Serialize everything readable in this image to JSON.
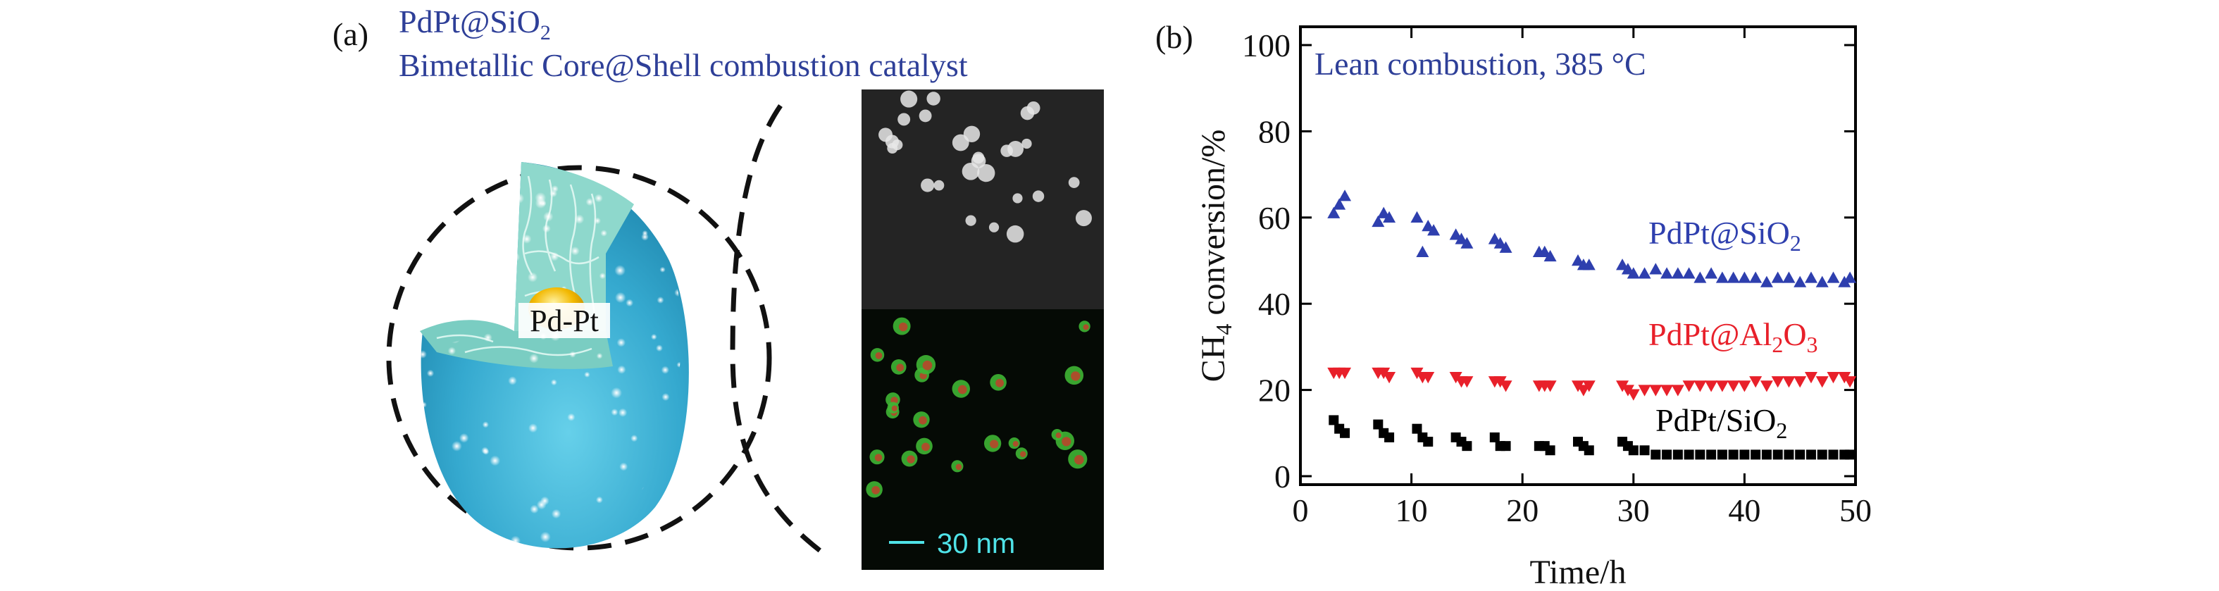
{
  "panel_a": {
    "label": "(a)",
    "title_line1_main": "PdPt@SiO",
    "title_line1_sub": "2",
    "title_line2": "Bimetallic Core@Shell combustion catalyst",
    "core_label": "Pd-Pt",
    "scale_bar_label": "30 nm"
  },
  "panel_b": {
    "label": "(b)"
  },
  "colors": {
    "silica_shell": "#3fb2d6",
    "shell_cut": "#8ed8cc",
    "core": "#e0a800",
    "series_blue": "#2e3fae",
    "series_red": "#e8202a",
    "series_black": "#000000",
    "annotation_blue": "#2e3f98"
  },
  "chart_data": {
    "type": "scatter",
    "annotation": "Lean combustion, 385 °C",
    "xlabel": "Time/h",
    "ylabel_main": "CH",
    "ylabel_sub": "4",
    "ylabel_rest": " conversion/%",
    "xlim": [
      0,
      50
    ],
    "ylim": [
      0,
      100
    ],
    "xticks": [
      0,
      10,
      20,
      30,
      40,
      50
    ],
    "yticks": [
      0,
      20,
      40,
      60,
      80,
      100
    ],
    "series": [
      {
        "label_main": "PdPt@SiO",
        "label_sub": "2",
        "label_tail": "",
        "marker": "triangle-up",
        "points": [
          [
            3,
            61
          ],
          [
            3.5,
            63
          ],
          [
            4,
            65
          ],
          [
            7,
            59
          ],
          [
            7.5,
            61
          ],
          [
            8,
            60
          ],
          [
            10.5,
            60
          ],
          [
            11,
            52
          ],
          [
            11.5,
            58
          ],
          [
            12,
            57
          ],
          [
            14,
            56
          ],
          [
            14.5,
            55
          ],
          [
            15,
            54
          ],
          [
            17.5,
            55
          ],
          [
            18,
            54
          ],
          [
            18.5,
            53
          ],
          [
            21.5,
            52
          ],
          [
            22,
            52
          ],
          [
            22.5,
            51
          ],
          [
            25,
            50
          ],
          [
            25.5,
            49
          ],
          [
            26,
            49
          ],
          [
            29,
            49
          ],
          [
            29.5,
            48
          ],
          [
            30,
            47
          ],
          [
            31,
            47
          ],
          [
            32,
            48
          ],
          [
            33,
            47
          ],
          [
            34,
            47
          ],
          [
            35,
            47
          ],
          [
            36,
            46
          ],
          [
            37,
            47
          ],
          [
            38,
            46
          ],
          [
            39,
            46
          ],
          [
            40,
            46
          ],
          [
            41,
            46
          ],
          [
            42,
            45
          ],
          [
            43,
            46
          ],
          [
            44,
            46
          ],
          [
            45,
            45
          ],
          [
            46,
            46
          ],
          [
            47,
            45
          ],
          [
            48,
            46
          ],
          [
            49,
            45
          ],
          [
            49.5,
            46
          ]
        ]
      },
      {
        "label_main": "PdPt@Al",
        "label_sub": "2",
        "label_tail": "O3",
        "marker": "triangle-down",
        "points": [
          [
            3,
            24
          ],
          [
            3.5,
            24
          ],
          [
            4,
            24
          ],
          [
            7,
            24
          ],
          [
            7.5,
            24
          ],
          [
            8,
            23
          ],
          [
            10.5,
            24
          ],
          [
            11,
            23
          ],
          [
            11.5,
            23
          ],
          [
            14,
            23
          ],
          [
            14.5,
            22
          ],
          [
            15,
            22
          ],
          [
            17.5,
            22
          ],
          [
            18,
            22
          ],
          [
            18.5,
            21
          ],
          [
            21.5,
            21
          ],
          [
            22,
            21
          ],
          [
            22.5,
            21
          ],
          [
            25,
            21
          ],
          [
            25.5,
            20
          ],
          [
            26,
            21
          ],
          [
            29,
            21
          ],
          [
            29.5,
            20
          ],
          [
            30,
            19
          ],
          [
            31,
            20
          ],
          [
            32,
            20
          ],
          [
            33,
            20
          ],
          [
            34,
            20
          ],
          [
            35,
            21
          ],
          [
            36,
            21
          ],
          [
            37,
            21
          ],
          [
            38,
            21
          ],
          [
            39,
            21
          ],
          [
            40,
            21
          ],
          [
            41,
            22
          ],
          [
            42,
            21
          ],
          [
            43,
            22
          ],
          [
            44,
            22
          ],
          [
            45,
            22
          ],
          [
            46,
            23
          ],
          [
            47,
            22
          ],
          [
            48,
            23
          ],
          [
            49,
            23
          ],
          [
            49.5,
            22
          ]
        ]
      },
      {
        "label_main": "PdPt/SiO",
        "label_sub": "2",
        "label_tail": "",
        "marker": "square",
        "points": [
          [
            3,
            13
          ],
          [
            3.5,
            11
          ],
          [
            4,
            10
          ],
          [
            7,
            12
          ],
          [
            7.5,
            10
          ],
          [
            8,
            9
          ],
          [
            10.5,
            11
          ],
          [
            11,
            9
          ],
          [
            11.5,
            8
          ],
          [
            14,
            9
          ],
          [
            14.5,
            8
          ],
          [
            15,
            7
          ],
          [
            17.5,
            9
          ],
          [
            18,
            7
          ],
          [
            18.5,
            7
          ],
          [
            21.5,
            7
          ],
          [
            22,
            7
          ],
          [
            22.5,
            6
          ],
          [
            25,
            8
          ],
          [
            25.5,
            7
          ],
          [
            26,
            6
          ],
          [
            29,
            8
          ],
          [
            29.5,
            7
          ],
          [
            30,
            6
          ],
          [
            31,
            6
          ],
          [
            32,
            5
          ],
          [
            33,
            5
          ],
          [
            34,
            5
          ],
          [
            35,
            5
          ],
          [
            36,
            5
          ],
          [
            37,
            5
          ],
          [
            38,
            5
          ],
          [
            39,
            5
          ],
          [
            40,
            5
          ],
          [
            41,
            5
          ],
          [
            42,
            5
          ],
          [
            43,
            5
          ],
          [
            44,
            5
          ],
          [
            45,
            5
          ],
          [
            46,
            5
          ],
          [
            47,
            5
          ],
          [
            48,
            5
          ],
          [
            49,
            5
          ],
          [
            49.5,
            5
          ]
        ]
      }
    ]
  }
}
